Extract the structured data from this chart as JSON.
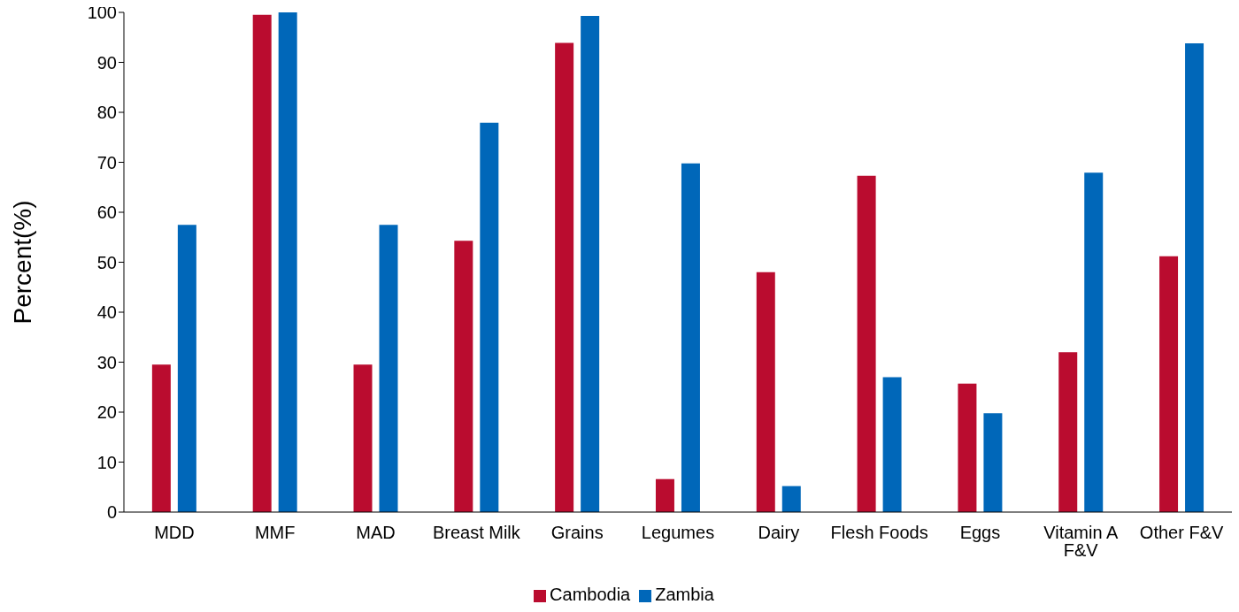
{
  "chart_data": {
    "type": "bar",
    "ylabel": "Percent(%)",
    "categories": [
      "MDD",
      "MMF",
      "MAD",
      "Breast Milk",
      "Grains",
      "Legumes",
      "Dairy",
      "Flesh Foods",
      "Eggs",
      "Vitamin A F&V",
      "Other F&V"
    ],
    "series": [
      {
        "name": "Cambodia",
        "color": "#ba0c2f",
        "values": [
          29.5,
          99.5,
          29.5,
          54.3,
          93.9,
          6.6,
          48.0,
          67.3,
          25.7,
          32.0,
          51.2
        ]
      },
      {
        "name": "Zambia",
        "color": "#0067b9",
        "values": [
          57.5,
          100,
          57.5,
          77.9,
          99.3,
          69.8,
          5.2,
          27.0,
          19.8,
          67.9,
          93.8
        ]
      }
    ],
    "ylim": [
      0,
      100
    ],
    "yticks": [
      0,
      10,
      20,
      30,
      40,
      50,
      60,
      70,
      80,
      90,
      100
    ],
    "grid": false,
    "legend": "bottom"
  }
}
